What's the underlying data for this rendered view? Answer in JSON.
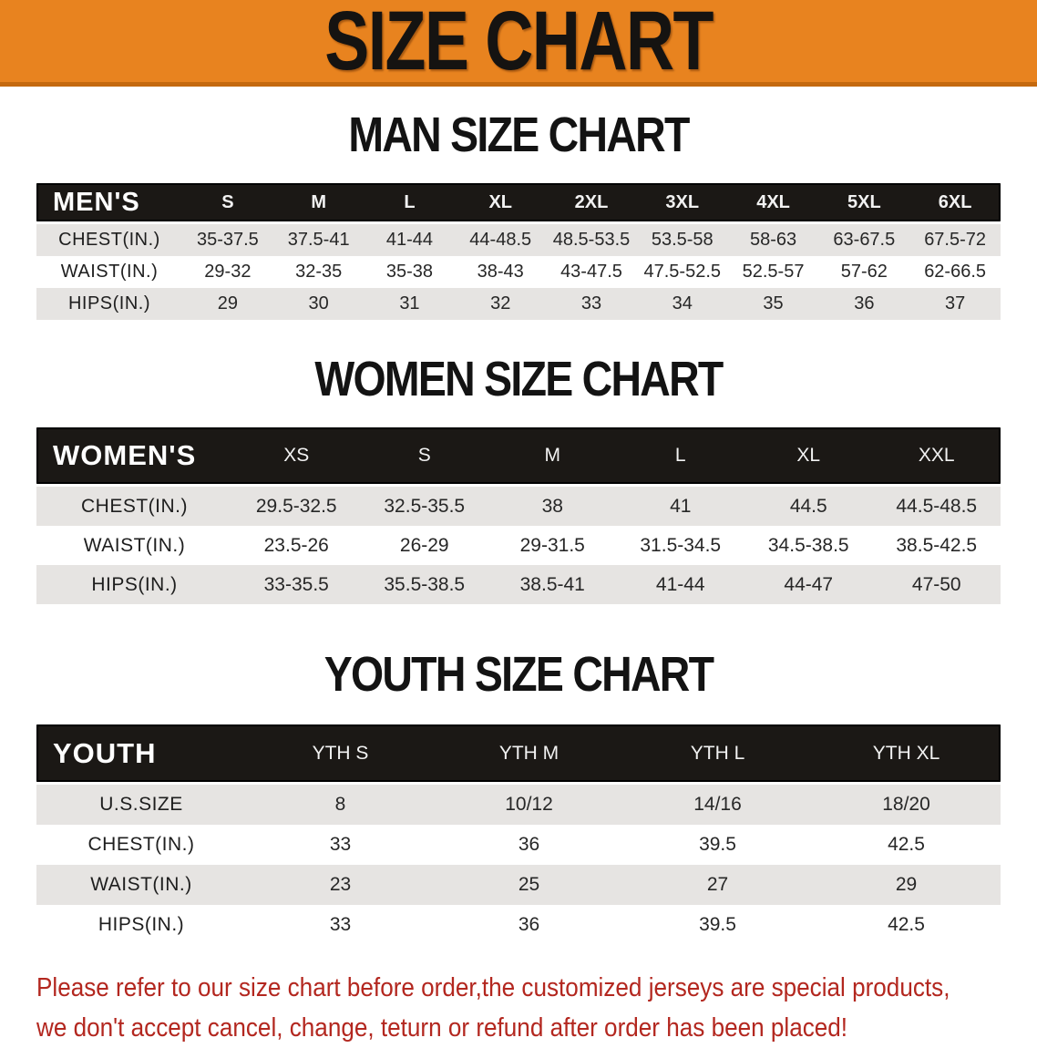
{
  "banner": {
    "title": "SIZE CHART",
    "bg_color": "#e8831f",
    "edge_color": "#c4690f",
    "text_color": "#151311"
  },
  "sections": [
    {
      "heading": "MAN SIZE CHART",
      "table": {
        "header_label": "MEN'S",
        "columns": [
          "S",
          "M",
          "L",
          "XL",
          "2XL",
          "3XL",
          "4XL",
          "5XL",
          "6XL"
        ],
        "rows": [
          {
            "label": "CHEST(IN.)",
            "values": [
              "35-37.5",
              "37.5-41",
              "41-44",
              "44-48.5",
              "48.5-53.5",
              "53.5-58",
              "58-63",
              "63-67.5",
              "67.5-72"
            ]
          },
          {
            "label": "WAIST(IN.)",
            "values": [
              "29-32",
              "32-35",
              "35-38",
              "38-43",
              "43-47.5",
              "47.5-52.5",
              "52.5-57",
              "57-62",
              "62-66.5"
            ]
          },
          {
            "label": "HIPS(IN.)",
            "values": [
              "29",
              "30",
              "31",
              "32",
              "33",
              "34",
              "35",
              "36",
              "37"
            ]
          }
        ]
      }
    },
    {
      "heading": "WOMEN SIZE CHART",
      "table": {
        "header_label": "WOMEN'S",
        "columns": [
          "XS",
          "S",
          "M",
          "L",
          "XL",
          "XXL"
        ],
        "rows": [
          {
            "label": "CHEST(IN.)",
            "values": [
              "29.5-32.5",
              "32.5-35.5",
              "38",
              "41",
              "44.5",
              "44.5-48.5"
            ]
          },
          {
            "label": "WAIST(IN.)",
            "values": [
              "23.5-26",
              "26-29",
              "29-31.5",
              "31.5-34.5",
              "34.5-38.5",
              "38.5-42.5"
            ]
          },
          {
            "label": "HIPS(IN.)",
            "values": [
              "33-35.5",
              "35.5-38.5",
              "38.5-41",
              "41-44",
              "44-47",
              "47-50"
            ]
          }
        ]
      }
    },
    {
      "heading": "YOUTH SIZE CHART",
      "table": {
        "header_label": "YOUTH",
        "columns": [
          "YTH S",
          "YTH M",
          "YTH L",
          "YTH XL"
        ],
        "rows": [
          {
            "label": "U.S.SIZE",
            "values": [
              "8",
              "10/12",
              "14/16",
              "18/20"
            ]
          },
          {
            "label": "CHEST(IN.)",
            "values": [
              "33",
              "36",
              "39.5",
              "42.5"
            ]
          },
          {
            "label": "WAIST(IN.)",
            "values": [
              "23",
              "25",
              "27",
              "29"
            ]
          },
          {
            "label": "HIPS(IN.)",
            "values": [
              "33",
              "36",
              "39.5",
              "42.5"
            ]
          }
        ]
      }
    }
  ],
  "disclaimer": {
    "line1": "Please refer to our size chart before order,the customized jerseys are special products,",
    "line2": "we don't accept cancel, change, teturn or refund after order has been placed!",
    "color": "#b3271f"
  },
  "table_colors": {
    "header_bg": "#1b1815",
    "header_text": "#ffffff",
    "stripe_bg": "#e6e4e2"
  }
}
